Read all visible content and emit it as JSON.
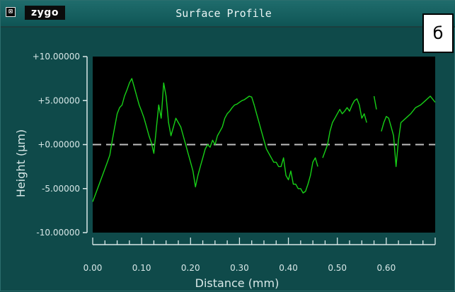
{
  "window": {
    "close_glyph": "⊠",
    "brand": "zygo",
    "title": "Surface Profile",
    "corner_label": "б"
  },
  "chart_data": {
    "type": "line",
    "title": "",
    "xlabel": "Distance (mm)",
    "ylabel": "Height (µm)",
    "xlim": [
      0.0,
      0.7
    ],
    "ylim": [
      -10.0,
      10.0
    ],
    "x_ticks": [
      "0.00",
      "0.10",
      "0.20",
      "0.30",
      "0.40",
      "0.50",
      "0.60"
    ],
    "y_ticks": [
      "+10.00000",
      "+5.00000",
      "+0.00000",
      "-5.00000",
      "-10.00000"
    ],
    "zero_line": 0.0,
    "colors": {
      "background": "#000000",
      "line": "#17d017",
      "zero_line": "#bfbfbf",
      "panel": "#0f4a4a",
      "axis_text": "#d8e8e8"
    },
    "series": [
      {
        "name": "",
        "segments": [
          [
            [
              0.0,
              -6.5
            ],
            [
              0.01,
              -5.0
            ],
            [
              0.02,
              -3.5
            ],
            [
              0.03,
              -2.0
            ],
            [
              0.035,
              -1.2
            ],
            [
              0.04,
              0.5
            ],
            [
              0.045,
              2.0
            ],
            [
              0.05,
              3.5
            ],
            [
              0.055,
              4.2
            ],
            [
              0.06,
              4.5
            ],
            [
              0.065,
              5.5
            ],
            [
              0.07,
              6.2
            ],
            [
              0.075,
              7.0
            ],
            [
              0.08,
              7.5
            ],
            [
              0.085,
              6.5
            ],
            [
              0.09,
              5.5
            ],
            [
              0.095,
              4.5
            ],
            [
              0.1,
              3.8
            ],
            [
              0.105,
              3.0
            ],
            [
              0.11,
              2.0
            ],
            [
              0.115,
              1.0
            ],
            [
              0.12,
              0.2
            ],
            [
              0.125,
              -1.0
            ],
            [
              0.13,
              1.8
            ],
            [
              0.135,
              4.5
            ],
            [
              0.14,
              3.0
            ],
            [
              0.145,
              7.0
            ],
            [
              0.15,
              5.5
            ],
            [
              0.155,
              2.5
            ],
            [
              0.16,
              1.0
            ],
            [
              0.165,
              2.0
            ],
            [
              0.17,
              3.0
            ],
            [
              0.175,
              2.5
            ],
            [
              0.18,
              2.0
            ],
            [
              0.185,
              1.0
            ],
            [
              0.19,
              0.0
            ],
            [
              0.195,
              -1.0
            ],
            [
              0.2,
              -2.0
            ],
            [
              0.205,
              -3.0
            ],
            [
              0.21,
              -4.8
            ],
            [
              0.215,
              -3.5
            ],
            [
              0.22,
              -2.5
            ],
            [
              0.225,
              -1.5
            ],
            [
              0.23,
              -0.5
            ],
            [
              0.235,
              0.0
            ],
            [
              0.24,
              -0.3
            ],
            [
              0.245,
              0.5
            ],
            [
              0.25,
              0.0
            ],
            [
              0.255,
              1.0
            ],
            [
              0.26,
              1.5
            ],
            [
              0.265,
              2.0
            ],
            [
              0.27,
              3.0
            ],
            [
              0.275,
              3.5
            ],
            [
              0.28,
              3.8
            ],
            [
              0.285,
              4.2
            ],
            [
              0.29,
              4.5
            ],
            [
              0.295,
              4.6
            ],
            [
              0.3,
              4.8
            ],
            [
              0.305,
              5.0
            ],
            [
              0.31,
              5.1
            ],
            [
              0.315,
              5.3
            ],
            [
              0.32,
              5.5
            ],
            [
              0.325,
              5.4
            ],
            [
              0.33,
              4.5
            ],
            [
              0.335,
              3.5
            ],
            [
              0.34,
              2.5
            ],
            [
              0.345,
              1.5
            ],
            [
              0.35,
              0.5
            ],
            [
              0.355,
              -0.5
            ],
            [
              0.36,
              -1.0
            ],
            [
              0.365,
              -1.5
            ],
            [
              0.37,
              -2.0
            ],
            [
              0.375,
              -2.0
            ],
            [
              0.38,
              -2.5
            ],
            [
              0.385,
              -2.5
            ],
            [
              0.39,
              -1.5
            ],
            [
              0.395,
              -3.5
            ],
            [
              0.4,
              -4.0
            ],
            [
              0.405,
              -3.0
            ],
            [
              0.41,
              -4.5
            ],
            [
              0.415,
              -4.5
            ],
            [
              0.42,
              -5.0
            ],
            [
              0.425,
              -5.0
            ],
            [
              0.43,
              -5.5
            ],
            [
              0.435,
              -5.3
            ],
            [
              0.44,
              -4.5
            ],
            [
              0.445,
              -3.5
            ],
            [
              0.45,
              -2.0
            ],
            [
              0.455,
              -1.5
            ],
            [
              0.46,
              -2.5
            ]
          ],
          [
            [
              0.47,
              -1.5
            ],
            [
              0.48,
              0.0
            ],
            [
              0.485,
              1.5
            ],
            [
              0.49,
              2.5
            ],
            [
              0.495,
              3.0
            ],
            [
              0.5,
              3.5
            ],
            [
              0.505,
              4.0
            ],
            [
              0.51,
              3.5
            ],
            [
              0.515,
              3.8
            ],
            [
              0.52,
              4.2
            ],
            [
              0.525,
              3.8
            ],
            [
              0.53,
              4.5
            ],
            [
              0.535,
              5.0
            ],
            [
              0.54,
              5.2
            ],
            [
              0.545,
              4.5
            ],
            [
              0.55,
              3.0
            ],
            [
              0.555,
              3.5
            ],
            [
              0.56,
              2.5
            ]
          ],
          [
            [
              0.575,
              5.5
            ],
            [
              0.58,
              4.0
            ]
          ],
          [
            [
              0.59,
              1.5
            ],
            [
              0.595,
              2.5
            ],
            [
              0.6,
              3.2
            ],
            [
              0.605,
              3.0
            ],
            [
              0.61,
              2.0
            ],
            [
              0.615,
              1.0
            ],
            [
              0.62,
              -2.5
            ],
            [
              0.625,
              0.5
            ],
            [
              0.63,
              2.5
            ],
            [
              0.64,
              3.0
            ],
            [
              0.65,
              3.5
            ],
            [
              0.66,
              4.2
            ],
            [
              0.67,
              4.5
            ],
            [
              0.68,
              5.0
            ],
            [
              0.69,
              5.5
            ],
            [
              0.7,
              4.8
            ]
          ]
        ]
      }
    ]
  }
}
